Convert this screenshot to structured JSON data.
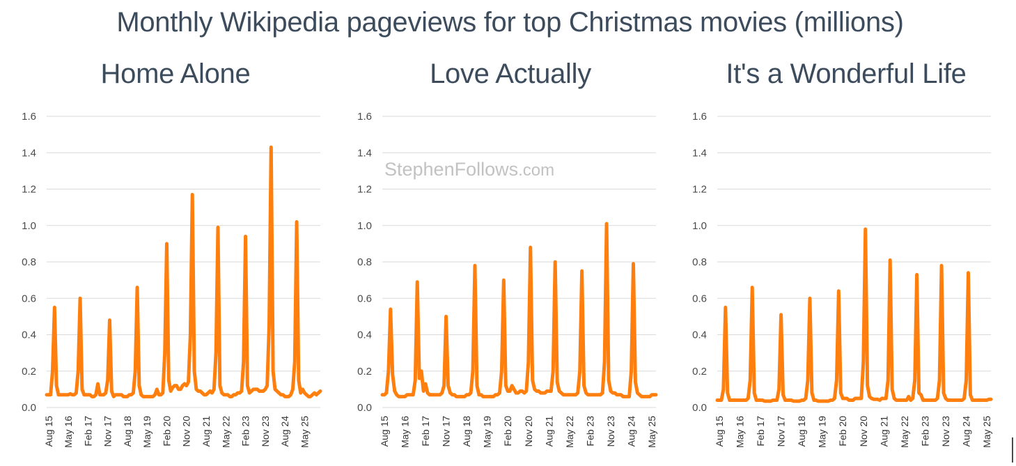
{
  "title": "Monthly Wikipedia pageviews for top Christmas movies (millions)",
  "watermark": {
    "name": "StephenFollows",
    "suffix": ".com"
  },
  "colors": {
    "line": "#ff7f0e",
    "grid": "#d9d9d9",
    "text": "#3d4c5d"
  },
  "chart_data": [
    {
      "type": "line",
      "title": "Home Alone",
      "ylim": [
        0,
        1.6
      ],
      "yticks": [
        "0.0",
        "0.2",
        "0.4",
        "0.6",
        "0.8",
        "1.0",
        "1.2",
        "1.4",
        "1.6"
      ],
      "x_start": "Jul 15",
      "xticks": [
        "Aug 15",
        "May 16",
        "Feb 17",
        "Nov 17",
        "Aug 18",
        "May 19",
        "Feb 20",
        "Nov 20",
        "Aug 21",
        "May 22",
        "Feb 23",
        "Nov 23",
        "Aug 24",
        "May 25"
      ],
      "grid": true,
      "values": [
        0.07,
        0.07,
        0.07,
        0.2,
        0.55,
        0.12,
        0.07,
        0.07,
        0.07,
        0.07,
        0.07,
        0.07,
        0.075,
        0.07,
        0.07,
        0.08,
        0.2,
        0.6,
        0.1,
        0.07,
        0.07,
        0.07,
        0.07,
        0.06,
        0.06,
        0.07,
        0.13,
        0.07,
        0.07,
        0.07,
        0.08,
        0.15,
        0.48,
        0.09,
        0.06,
        0.07,
        0.07,
        0.07,
        0.07,
        0.06,
        0.06,
        0.06,
        0.07,
        0.07,
        0.08,
        0.2,
        0.66,
        0.12,
        0.07,
        0.06,
        0.06,
        0.06,
        0.06,
        0.06,
        0.06,
        0.07,
        0.1,
        0.07,
        0.07,
        0.08,
        0.3,
        0.9,
        0.15,
        0.09,
        0.11,
        0.12,
        0.12,
        0.1,
        0.1,
        0.12,
        0.13,
        0.12,
        0.14,
        0.4,
        1.17,
        0.2,
        0.1,
        0.09,
        0.09,
        0.08,
        0.07,
        0.07,
        0.08,
        0.09,
        0.08,
        0.1,
        0.3,
        0.99,
        0.12,
        0.08,
        0.07,
        0.07,
        0.07,
        0.06,
        0.06,
        0.07,
        0.07,
        0.08,
        0.08,
        0.09,
        0.25,
        0.94,
        0.12,
        0.08,
        0.09,
        0.1,
        0.1,
        0.1,
        0.09,
        0.09,
        0.09,
        0.1,
        0.12,
        0.45,
        1.43,
        0.2,
        0.1,
        0.09,
        0.08,
        0.07,
        0.07,
        0.06,
        0.06,
        0.06,
        0.07,
        0.1,
        0.25,
        1.02,
        0.15,
        0.08,
        0.1,
        0.08,
        0.07,
        0.06,
        0.06,
        0.07,
        0.08,
        0.07,
        0.08,
        0.09
      ]
    },
    {
      "type": "line",
      "title": "Love Actually",
      "ylim": [
        0,
        1.6
      ],
      "yticks": [
        "0.0",
        "0.2",
        "0.4",
        "0.6",
        "0.8",
        "1.0",
        "1.2",
        "1.4",
        "1.6"
      ],
      "x_start": "Jul 15",
      "xticks": [
        "Aug 15",
        "May 16",
        "Feb 17",
        "Nov 17",
        "Aug 18",
        "May 19",
        "Feb 20",
        "Nov 20",
        "Aug 21",
        "May 22",
        "Feb 23",
        "Nov 23",
        "Aug 24",
        "May 25"
      ],
      "grid": true,
      "values": [
        0.07,
        0.07,
        0.08,
        0.2,
        0.54,
        0.18,
        0.09,
        0.07,
        0.06,
        0.06,
        0.06,
        0.06,
        0.07,
        0.07,
        0.07,
        0.07,
        0.15,
        0.69,
        0.16,
        0.2,
        0.09,
        0.13,
        0.08,
        0.07,
        0.07,
        0.07,
        0.07,
        0.07,
        0.07,
        0.08,
        0.12,
        0.5,
        0.12,
        0.08,
        0.07,
        0.07,
        0.06,
        0.06,
        0.06,
        0.06,
        0.06,
        0.07,
        0.07,
        0.08,
        0.2,
        0.78,
        0.12,
        0.07,
        0.07,
        0.06,
        0.06,
        0.06,
        0.06,
        0.06,
        0.06,
        0.07,
        0.07,
        0.08,
        0.2,
        0.7,
        0.12,
        0.09,
        0.09,
        0.12,
        0.1,
        0.08,
        0.08,
        0.09,
        0.09,
        0.08,
        0.09,
        0.25,
        0.88,
        0.15,
        0.1,
        0.09,
        0.09,
        0.08,
        0.08,
        0.08,
        0.09,
        0.09,
        0.09,
        0.2,
        0.8,
        0.14,
        0.09,
        0.08,
        0.07,
        0.07,
        0.07,
        0.07,
        0.07,
        0.07,
        0.07,
        0.08,
        0.2,
        0.75,
        0.12,
        0.08,
        0.07,
        0.07,
        0.07,
        0.07,
        0.07,
        0.07,
        0.07,
        0.08,
        0.25,
        1.01,
        0.15,
        0.09,
        0.08,
        0.08,
        0.07,
        0.07,
        0.07,
        0.06,
        0.06,
        0.06,
        0.06,
        0.2,
        0.79,
        0.14,
        0.08,
        0.07,
        0.06,
        0.06,
        0.06,
        0.06,
        0.06,
        0.07,
        0.07,
        0.07
      ]
    },
    {
      "type": "line",
      "title": "It's a Wonderful Life",
      "ylim": [
        0,
        1.6
      ],
      "yticks": [
        "0.0",
        "0.2",
        "0.4",
        "0.6",
        "0.8",
        "1.0",
        "1.2",
        "1.4",
        "1.6"
      ],
      "x_start": "Jul 15",
      "xticks": [
        "Aug 15",
        "May 16",
        "Feb 17",
        "Nov 17",
        "Aug 18",
        "May 19",
        "Feb 20",
        "Nov 20",
        "Aug 21",
        "May 22",
        "Feb 23",
        "Nov 23",
        "Aug 24",
        "May 25"
      ],
      "grid": true,
      "values": [
        0.04,
        0.04,
        0.04,
        0.1,
        0.55,
        0.08,
        0.04,
        0.04,
        0.04,
        0.04,
        0.04,
        0.04,
        0.04,
        0.04,
        0.04,
        0.05,
        0.15,
        0.66,
        0.08,
        0.04,
        0.04,
        0.04,
        0.04,
        0.035,
        0.035,
        0.035,
        0.035,
        0.04,
        0.04,
        0.04,
        0.1,
        0.51,
        0.07,
        0.04,
        0.04,
        0.04,
        0.04,
        0.035,
        0.035,
        0.035,
        0.035,
        0.04,
        0.04,
        0.05,
        0.15,
        0.6,
        0.08,
        0.04,
        0.04,
        0.035,
        0.035,
        0.035,
        0.035,
        0.035,
        0.035,
        0.04,
        0.04,
        0.05,
        0.15,
        0.64,
        0.08,
        0.05,
        0.05,
        0.05,
        0.04,
        0.04,
        0.04,
        0.05,
        0.05,
        0.05,
        0.05,
        0.25,
        0.98,
        0.12,
        0.06,
        0.05,
        0.045,
        0.045,
        0.045,
        0.04,
        0.05,
        0.05,
        0.05,
        0.15,
        0.81,
        0.1,
        0.05,
        0.04,
        0.04,
        0.04,
        0.04,
        0.04,
        0.04,
        0.06,
        0.04,
        0.05,
        0.15,
        0.73,
        0.08,
        0.07,
        0.04,
        0.04,
        0.04,
        0.04,
        0.04,
        0.04,
        0.04,
        0.05,
        0.15,
        0.78,
        0.08,
        0.05,
        0.04,
        0.04,
        0.04,
        0.04,
        0.04,
        0.04,
        0.04,
        0.04,
        0.05,
        0.15,
        0.74,
        0.07,
        0.04,
        0.04,
        0.04,
        0.04,
        0.04,
        0.04,
        0.04,
        0.04,
        0.045,
        0.045
      ]
    }
  ]
}
